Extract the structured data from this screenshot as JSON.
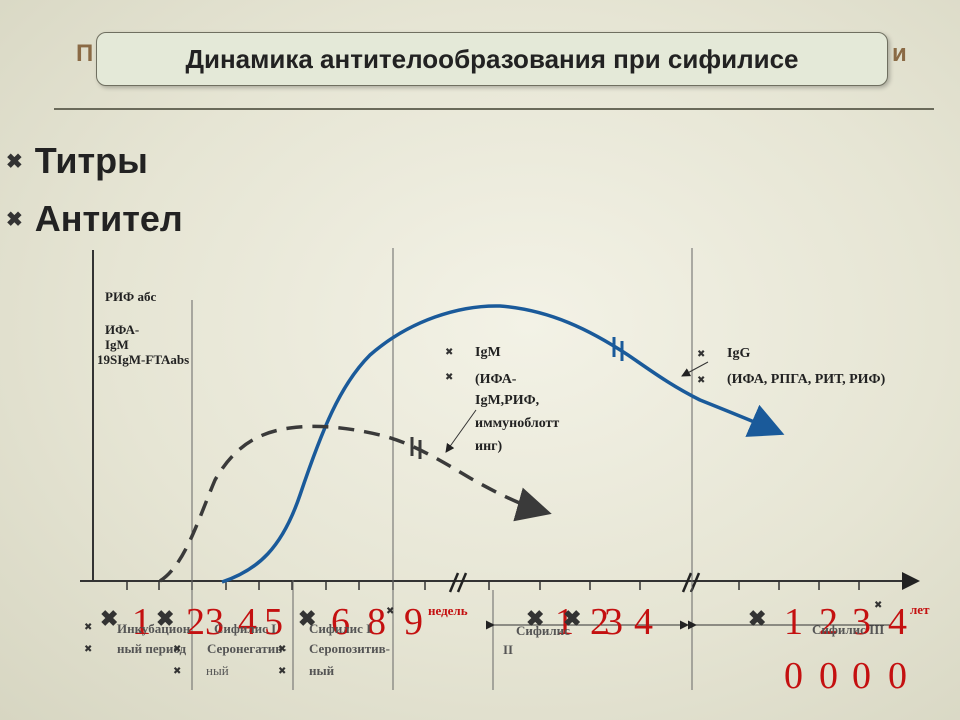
{
  "slide": {
    "title": "Динамика антителообразования при сифилисе",
    "behind_left": "П",
    "behind_right": "и",
    "bullets": [
      "Титры",
      "Антител"
    ]
  },
  "labels": {
    "rif_abs": "РИФ абс",
    "ifa_igm_1": "ИФА-",
    "ifa_igm_2": "IgM",
    "fta": "19SIgM-FTAabs",
    "igm_lines": [
      "IgM",
      "(ИФА-",
      "IgM,РИФ,",
      "иммуноблотт",
      "инг)"
    ],
    "igg_lines": [
      "IgG",
      "(ИФА, РПГА, РИТ, РИФ)"
    ],
    "weeks_unit": "недель",
    "years_unit": "лет"
  },
  "week_numbers": [
    "1",
    "23",
    "4",
    "5",
    "6",
    "8",
    "9"
  ],
  "mid_numbers": [
    "1",
    "2",
    "3",
    "4"
  ],
  "year_numbers_top": [
    "1",
    "2",
    "3",
    "4"
  ],
  "year_numbers_bottom": [
    "0",
    "0",
    "0",
    "0"
  ],
  "stages": {
    "incubation_1": "Инкубацион",
    "incubation_2": "ный период",
    "s1a": "Сифилис I",
    "s1b": "Серонегатив-",
    "s1c": "ный",
    "s1pos_a": "Сифилис I",
    "s1pos_b": "Серопозитив-",
    "s1pos_c": "ный",
    "s2a": "Сифилис",
    "s2b": "II",
    "s3": "Сифилис III"
  },
  "colors": {
    "title_bg": "#e4e9d8",
    "accent_red": "#c41010",
    "igg_curve": "#1a5a9a",
    "igm_curve": "#3a3a3a"
  }
}
